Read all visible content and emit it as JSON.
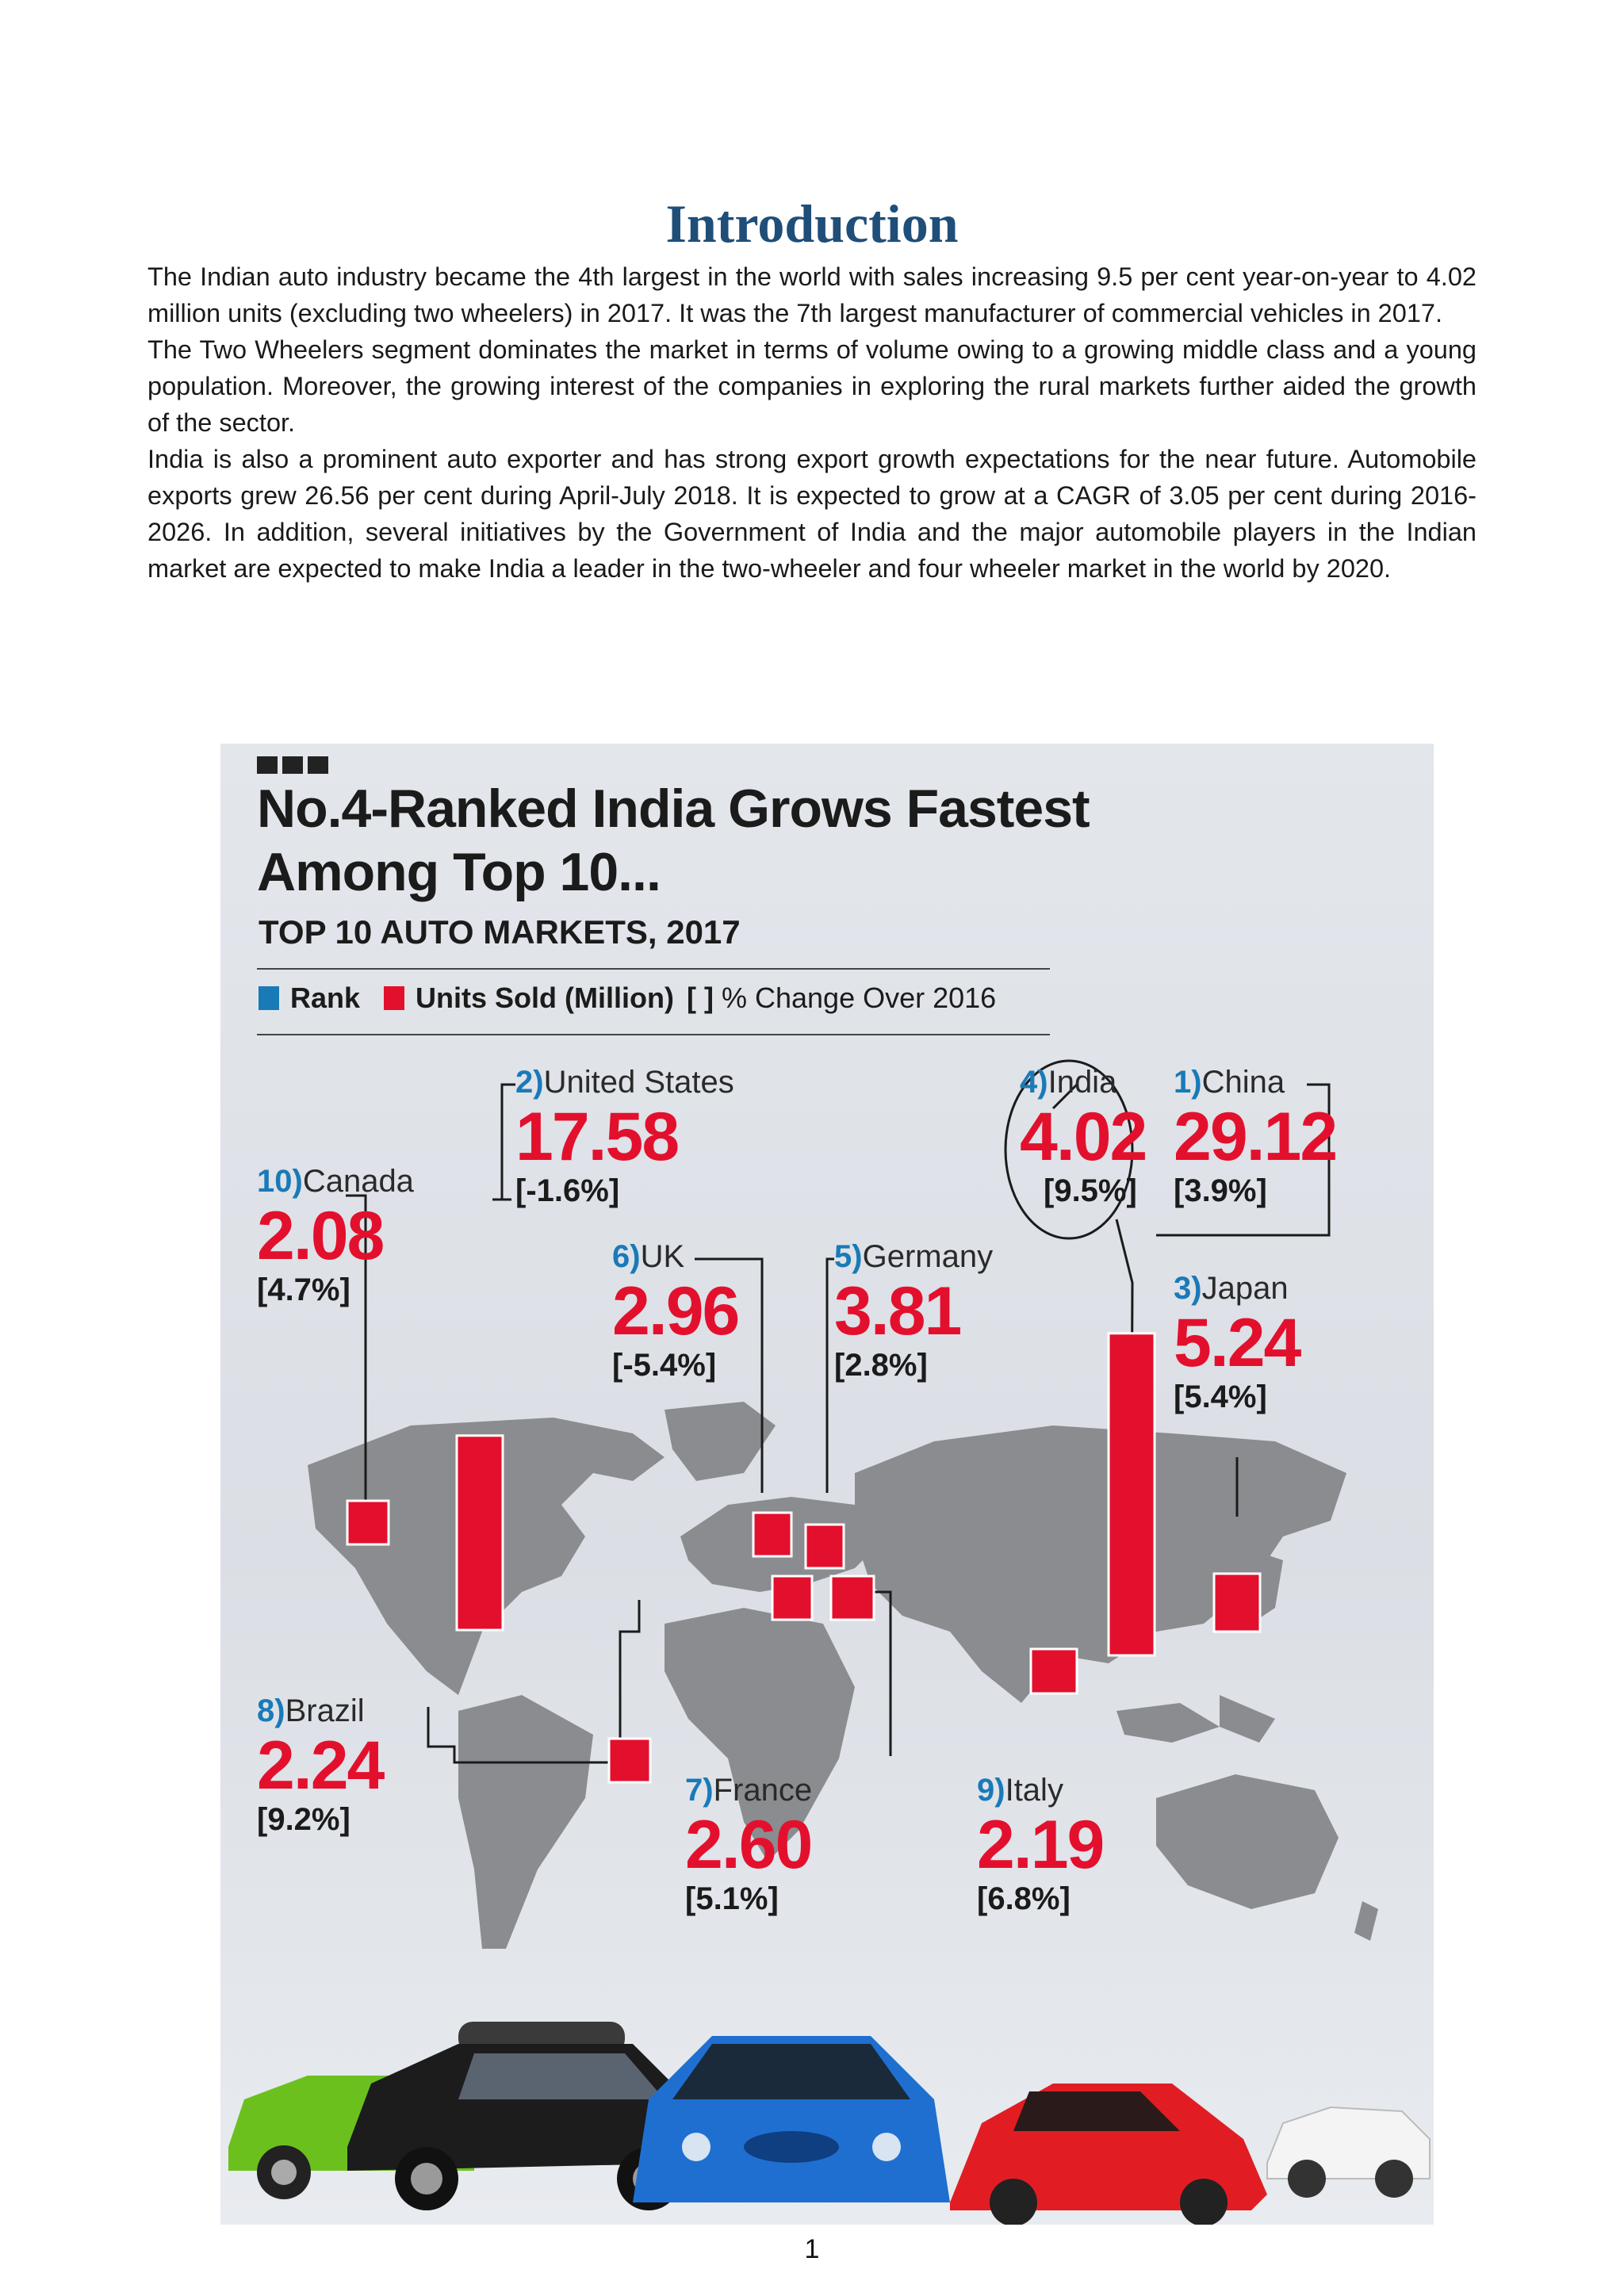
{
  "page": {
    "title": "Introduction",
    "paragraphs": [
      "The Indian auto industry became the 4th largest in the world with sales increasing 9.5 per cent year-on-year to 4.02 million units (excluding two wheelers) in 2017. It was the 7th largest manufacturer of commercial vehicles in 2017.",
      "The Two Wheelers segment dominates the market in terms of volume owing to a growing middle class and a young population. Moreover, the growing interest of the companies in exploring the rural markets further aided the growth of the sector.",
      "India is also a prominent auto exporter and has strong export growth expectations for the near future. Automobile exports grew 26.56 per cent during April-July 2018. It is expected to grow at a CAGR of 3.05 per cent during 2016-2026.  In addition, several initiatives by the Government of India and the major automobile players in the Indian market are expected to make India a leader in the two-wheeler and four wheeler market in the world by 2020."
    ],
    "page_number": "1"
  },
  "infographic": {
    "title_line1": "No.4-Ranked India Grows Fastest",
    "title_line2": "Among Top 10...",
    "subtitle": "TOP 10 AUTO MARKETS, 2017",
    "legend": {
      "rank": "Rank",
      "units": "Units Sold (Million)",
      "bracket": "[ ]",
      "change": "% Change Over 2016"
    },
    "colors": {
      "rank": "#1a7ab8",
      "units": "#e3102d",
      "map": "#8a8c8f"
    },
    "markets": [
      {
        "rank": "1)",
        "country": "China",
        "units": "29.12",
        "change": "[3.9%]"
      },
      {
        "rank": "2)",
        "country": "United States",
        "units": "17.58",
        "change": "[-1.6%]"
      },
      {
        "rank": "3)",
        "country": "Japan",
        "units": "5.24",
        "change": "[5.4%]"
      },
      {
        "rank": "4)",
        "country": "India",
        "units": "4.02",
        "change": "[9.5%]"
      },
      {
        "rank": "5)",
        "country": "Germany",
        "units": "3.81",
        "change": "[2.8%]"
      },
      {
        "rank": "6)",
        "country": "UK",
        "units": "2.96",
        "change": "[-5.4%]"
      },
      {
        "rank": "7)",
        "country": "France",
        "units": "2.60",
        "change": "[5.1%]"
      },
      {
        "rank": "8)",
        "country": "Brazil",
        "units": "2.24",
        "change": "[9.2%]"
      },
      {
        "rank": "9)",
        "country": "Italy",
        "units": "2.19",
        "change": "[6.8%]"
      },
      {
        "rank": "10)",
        "country": "Canada",
        "units": "2.08",
        "change": "[4.7%]"
      }
    ]
  }
}
